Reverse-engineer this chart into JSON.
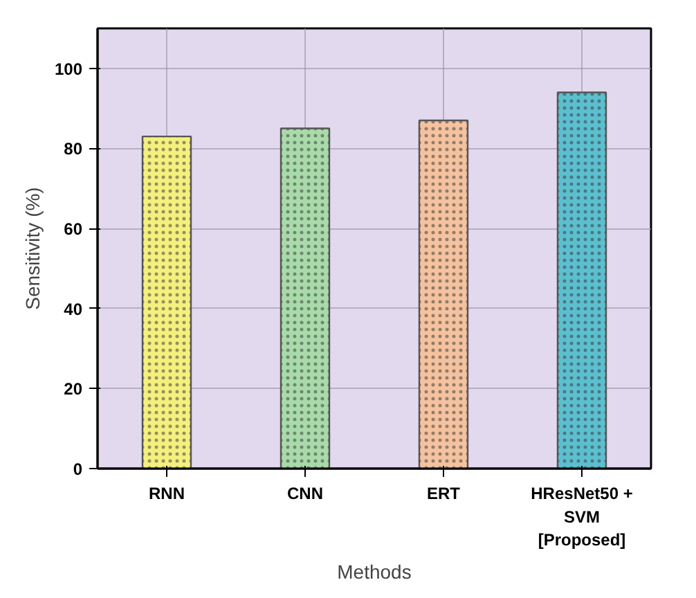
{
  "chart_data": {
    "type": "bar",
    "xlabel": "Methods",
    "ylabel": "Sensitivity (%)",
    "categories": [
      "RNN",
      "CNN",
      "ERT",
      "HResNet50 +\nSVM\n[Proposed]"
    ],
    "values": [
      83,
      85,
      87,
      94
    ],
    "colors": [
      "#f5ef7e",
      "#a9dbaa",
      "#f5c29f",
      "#5cbfd0"
    ],
    "ylim": [
      0,
      110
    ],
    "yticks": [
      0,
      20,
      40,
      60,
      80,
      100
    ],
    "grid": true
  }
}
